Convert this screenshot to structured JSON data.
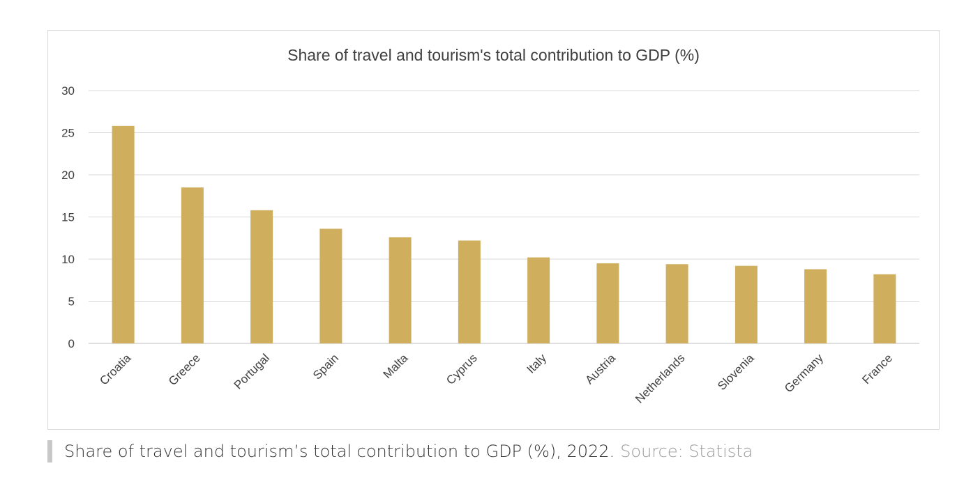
{
  "chart_data": {
    "type": "bar",
    "title": "Share of travel and tourism's total contribution to GDP (%)",
    "categories": [
      "Croatia",
      "Greece",
      "Portugal",
      "Spain",
      "Malta",
      "Cyprus",
      "Italy",
      "Austria",
      "Netherlands",
      "Slovenia",
      "Germany",
      "France"
    ],
    "values": [
      25.8,
      18.5,
      15.8,
      13.6,
      12.6,
      12.2,
      10.2,
      9.5,
      9.4,
      9.2,
      8.8,
      8.2
    ],
    "ylim": [
      0,
      30
    ],
    "yticks": [
      "0",
      "5",
      "10",
      "15",
      "20",
      "25",
      "30"
    ],
    "xlabel": "",
    "ylabel": "",
    "grid": true,
    "bar_color": "#cfae5e"
  },
  "caption": {
    "text": "Share of travel and tourism’s total contribution to GDP (%), 2022.",
    "source": "Source: Statista"
  }
}
